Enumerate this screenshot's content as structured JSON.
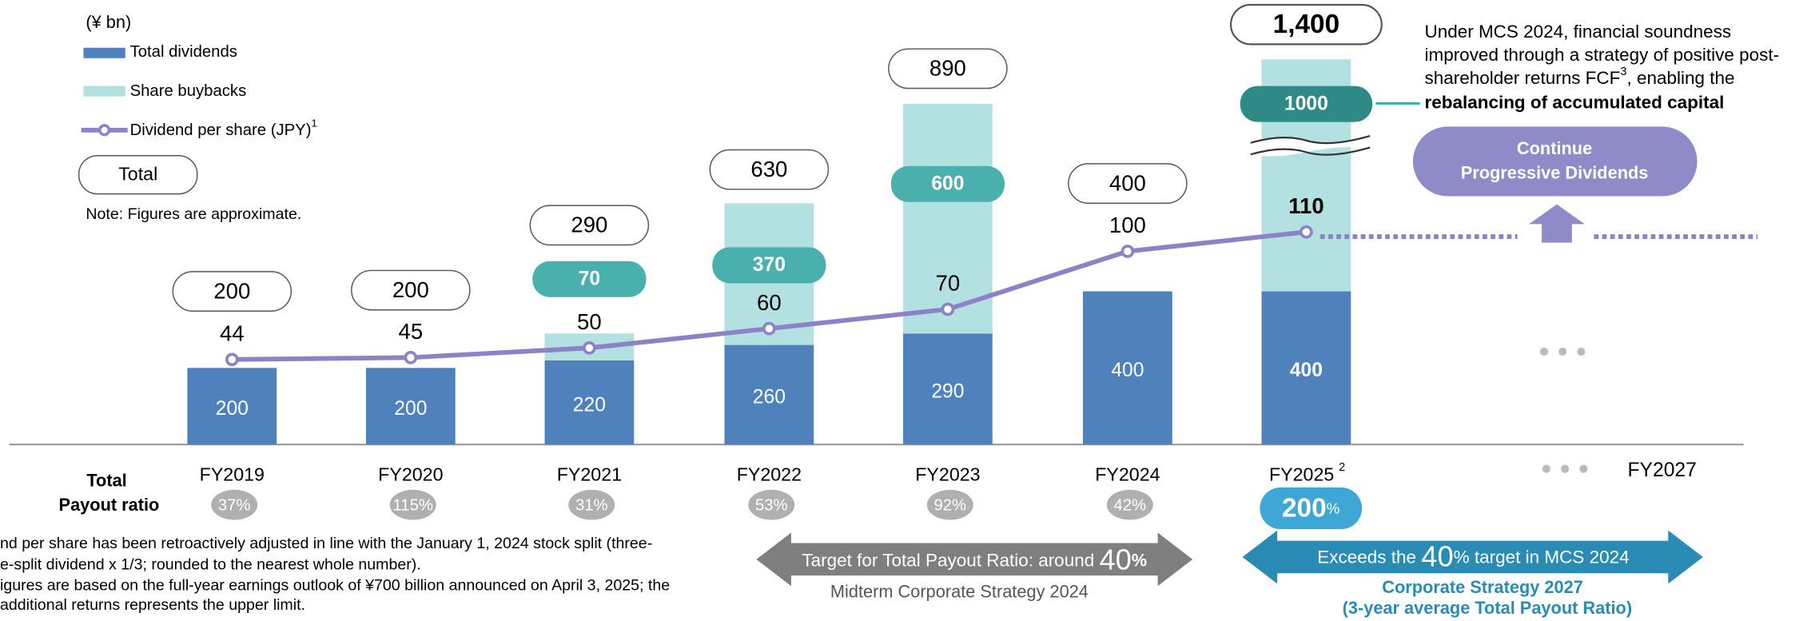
{
  "chart_data": {
    "type": "bar",
    "unit_label": "(¥ bn)",
    "categories": [
      "FY2019",
      "FY2020",
      "FY2021",
      "FY2022",
      "FY2023",
      "FY2024",
      "FY2025",
      "FY2027"
    ],
    "category_footnote": "2",
    "series": [
      {
        "name": "Total dividends",
        "color": "#4f81bd",
        "values": [
          200,
          200,
          220,
          260,
          290,
          400,
          400,
          null
        ]
      },
      {
        "name": "Share buybacks",
        "color": "#b3e0e0",
        "label_color": "#4ab0ae",
        "highlight_color": "#2e8a86",
        "values": [
          0,
          0,
          70,
          370,
          600,
          0,
          1000,
          null
        ]
      },
      {
        "name": "Dividend per share (JPY)",
        "name_footnote": "1",
        "color": "#8c83c6",
        "axis": "y2",
        "values": [
          44,
          45,
          50,
          60,
          70,
          100,
          110,
          null
        ]
      }
    ],
    "total_legend": "Total",
    "total_labels": [
      "200",
      "200",
      "290",
      "630",
      "890",
      "400",
      "1,400",
      null
    ],
    "ylim": [
      0,
      1400
    ],
    "axis_break": 900,
    "y2lim": [
      0,
      230
    ],
    "note": "Note: Figures are approximate.",
    "payout_title": [
      "Total",
      "Payout ratio"
    ],
    "payout_ratio": {
      "values": [
        37,
        115,
        31,
        53,
        92,
        42,
        200,
        null
      ],
      "value_labels": [
        "37%",
        "115%",
        "31%",
        "53%",
        "92%",
        "42%",
        "200",
        null
      ],
      "unit": "%"
    },
    "side_text": {
      "lines": [
        "Under MCS 2024, financial soundness",
        "improved through a strategy of positive post-",
        "shareholder returns FCF"
      ],
      "footnote": "3",
      "line3_rest": ", enabling the",
      "bold": "rebalancing of accumulated capital"
    },
    "continue_box": [
      "Continue",
      "Progressive Dividends"
    ],
    "gray_arrow": {
      "text": "Target for Total Payout Ratio: around ",
      "big": "40",
      "unit": "%",
      "caption": "Midterm Corporate Strategy 2024"
    },
    "blue_arrow": {
      "text": "Exceeds the ",
      "big": "40",
      "rest": "% target in MCS 2024",
      "caption": [
        "Corporate Strategy 2027",
        "(3-year average Total Payout Ratio)"
      ]
    },
    "footnotes": [
      "nd per share has been retroactively adjusted in line with the January 1, 2024 stock split (three-",
      "e-split dividend x 1/3; rounded to the nearest whole number).",
      "igures are based on the full-year earnings outlook of ¥700 billion announced on April 3, 2025; the",
      " additional returns represents the upper limit."
    ]
  }
}
